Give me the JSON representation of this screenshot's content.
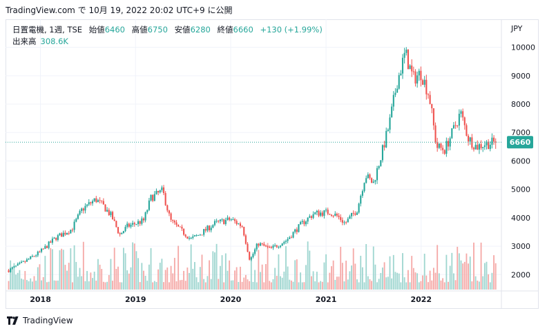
{
  "caption": "TradingView.com で 10月 19, 2022 20:02 UTC+9 に公開",
  "legend": {
    "symbol": "日置電機, 1週, TSE",
    "open_label": "始値",
    "open": "6460",
    "high_label": "高値",
    "high": "6750",
    "low_label": "安値",
    "low": "6280",
    "close_label": "終値",
    "close": "6660",
    "change": "+130 (+1.99%)"
  },
  "volume": {
    "label": "出来高",
    "value": "308.6K"
  },
  "footer": {
    "brand": "TradingView"
  },
  "colors": {
    "up": "#26a69a",
    "down": "#ef5350",
    "up_vol": "#9fd6d0",
    "down_vol": "#f5a9a7",
    "grid": "#f0f3fa"
  },
  "chart_data": {
    "type": "candlestick",
    "currency": "JPY",
    "ylim": [
      1400,
      10500
    ],
    "y_ticks": [
      2000,
      3000,
      4000,
      5000,
      6000,
      7000,
      8000,
      9000,
      10000
    ],
    "x_years": [
      "2018",
      "2019",
      "2020",
      "2021",
      "2022"
    ],
    "last_price": 6660,
    "price_path": [
      [
        "2017-09-01",
        2150
      ],
      [
        "2017-11-01",
        2450
      ],
      [
        "2018-01-01",
        2800
      ],
      [
        "2018-03-01",
        3300
      ],
      [
        "2018-05-01",
        3600
      ],
      [
        "2018-06-10",
        4300
      ],
      [
        "2018-08-01",
        4650
      ],
      [
        "2018-09-01",
        4400
      ],
      [
        "2018-10-01",
        4050
      ],
      [
        "2018-11-01",
        3400
      ],
      [
        "2018-12-01",
        3700
      ],
      [
        "2019-02-01",
        3900
      ],
      [
        "2019-03-01",
        4700
      ],
      [
        "2019-04-15",
        4950
      ],
      [
        "2019-05-15",
        3900
      ],
      [
        "2019-07-01",
        3500
      ],
      [
        "2019-08-01",
        3250
      ],
      [
        "2019-09-01",
        3400
      ],
      [
        "2019-11-01",
        3800
      ],
      [
        "2020-01-01",
        3950
      ],
      [
        "2020-02-15",
        3700
      ],
      [
        "2020-03-15",
        2500
      ],
      [
        "2020-04-15",
        3100
      ],
      [
        "2020-06-01",
        2900
      ],
      [
        "2020-08-01",
        3200
      ],
      [
        "2020-10-01",
        3800
      ],
      [
        "2020-11-15",
        4150
      ],
      [
        "2021-01-15",
        4200
      ],
      [
        "2021-02-15",
        4050
      ],
      [
        "2021-03-15",
        3800
      ],
      [
        "2021-05-01",
        4300
      ],
      [
        "2021-06-01",
        5500
      ],
      [
        "2021-07-01",
        5200
      ],
      [
        "2021-08-01",
        6200
      ],
      [
        "2021-09-01",
        7300
      ],
      [
        "2021-10-01",
        8800
      ],
      [
        "2021-11-01",
        9800
      ],
      [
        "2021-12-01",
        8900
      ],
      [
        "2022-01-01",
        9100
      ],
      [
        "2022-02-01",
        8300
      ],
      [
        "2022-03-01",
        6500
      ],
      [
        "2022-04-01",
        6400
      ],
      [
        "2022-05-01",
        7000
      ],
      [
        "2022-06-01",
        7700
      ],
      [
        "2022-07-01",
        6800
      ],
      [
        "2022-08-01",
        6500
      ],
      [
        "2022-09-01",
        6600
      ],
      [
        "2022-10-19",
        6660
      ]
    ]
  }
}
